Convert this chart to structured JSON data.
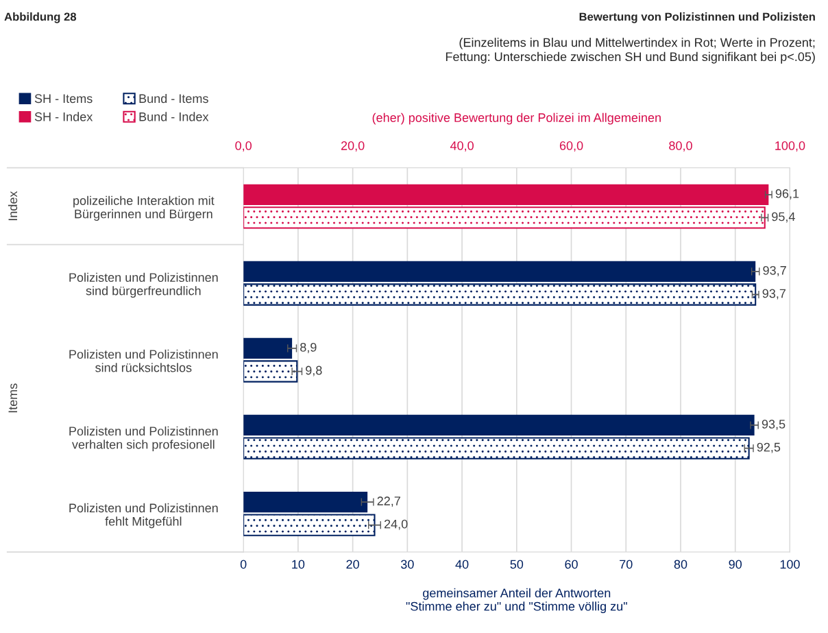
{
  "chart_data": {
    "type": "bar",
    "orientation": "horizontal",
    "title": "Bewertung von Polizistinnen und Polizisten",
    "subtitle": "(Einzelitems in Blau und Mittelwertindex in Rot; Werte in Prozent;\nFettung: Unterschiede zwischen SH und Bund signifikant bei p<.05)",
    "annotations": [
      "Abbildung 28",
      "Index",
      "Items"
    ],
    "categories": [
      "polizeiliche Interaktion mit\nBürgerinnen und Bürgern",
      "Polizisten und Polizistinnen\nsind bürgerfreundlich",
      "Polizisten und Polizistinnen\nsind rücksichtslos",
      "Polizisten und Polizistinnen\nverhalten sich profesionell",
      "Polizisten und Polizistinnen\nfehlt Mitgefühl"
    ],
    "series": [
      {
        "name": "SH - Items",
        "color": "#002060",
        "values": [
          null,
          93.7,
          8.9,
          93.5,
          22.7
        ],
        "errors": [
          null,
          0.7,
          0.8,
          0.7,
          1.1
        ],
        "value_labels": [
          null,
          "93,7",
          "8,9",
          "93,5",
          "22,7"
        ]
      },
      {
        "name": "Bund - Items",
        "color": "#002060",
        "values": [
          null,
          93.7,
          9.8,
          92.5,
          24.0
        ],
        "errors": [
          null,
          0.6,
          0.9,
          0.8,
          1.1
        ],
        "value_labels": [
          null,
          "93,7",
          "9,8",
          "92,5",
          "24,0"
        ]
      },
      {
        "name": "SH - Index",
        "color": "#d70c4b",
        "values": [
          96.1,
          null,
          null,
          null,
          null
        ],
        "errors": [
          0.6,
          null,
          null,
          null,
          null
        ],
        "value_labels": [
          "96,1",
          null,
          null,
          null,
          null
        ]
      },
      {
        "name": "Bund - Index",
        "color": "#d70c4b",
        "values": [
          95.4,
          null,
          null,
          null,
          null
        ],
        "errors": [
          0.6,
          null,
          null,
          null,
          null
        ],
        "value_labels": [
          "95,4",
          null,
          null,
          null,
          null
        ]
      }
    ],
    "xlabel": "gemeinsamer Anteil der Antworten\n\"Stimme eher zu\" und \"Stimme völlig zu\"",
    "xlim": [
      0,
      100
    ],
    "xticks": [
      0,
      10,
      20,
      30,
      40,
      50,
      60,
      70,
      80,
      90,
      100
    ],
    "x2label": "(eher) positive Bewertung der Polizei im Allgemeinen",
    "x2lim": [
      0,
      100
    ],
    "x2ticks": [
      {
        "value": 0,
        "label": "0,0"
      },
      {
        "value": 20,
        "label": "20,0"
      },
      {
        "value": 40,
        "label": "40,0"
      },
      {
        "value": 60,
        "label": "60,0"
      },
      {
        "value": 80,
        "label": "80,0"
      },
      {
        "value": 100,
        "label": "100,0"
      }
    ],
    "grid": "x",
    "legend": "top left"
  }
}
